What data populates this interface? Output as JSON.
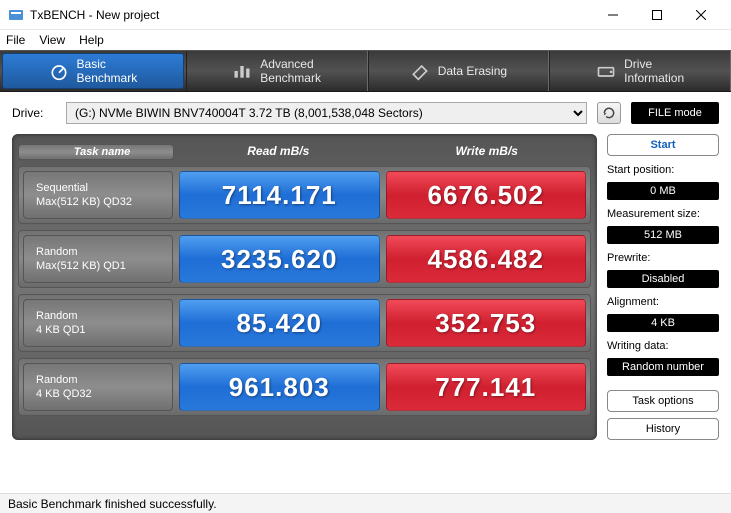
{
  "window": {
    "title": "TxBENCH - New project"
  },
  "menu": {
    "file": "File",
    "view": "View",
    "help": "Help"
  },
  "tabs": {
    "basic": "Basic\nBenchmark",
    "advanced": "Advanced\nBenchmark",
    "erase": "Data Erasing",
    "drive": "Drive\nInformation"
  },
  "drive": {
    "label": "Drive:",
    "selected": "(G:) NVMe BIWIN BNV740004T   3.72 TB (8,001,538,048 Sectors)",
    "filemode": "FILE mode"
  },
  "headers": {
    "task": "Task name",
    "read": "Read mB/s",
    "write": "Write mB/s"
  },
  "rows": [
    {
      "name1": "Sequential",
      "name2": "Max(512 KB) QD32",
      "read": "7114.171",
      "write": "6676.502"
    },
    {
      "name1": "Random",
      "name2": "Max(512 KB) QD1",
      "read": "3235.620",
      "write": "4586.482"
    },
    {
      "name1": "Random",
      "name2": "4 KB QD1",
      "read": "85.420",
      "write": "352.753"
    },
    {
      "name1": "Random",
      "name2": "4 KB QD32",
      "read": "961.803",
      "write": "777.141"
    }
  ],
  "side": {
    "start": "Start",
    "startpos_l": "Start position:",
    "startpos_v": "0 MB",
    "msize_l": "Measurement size:",
    "msize_v": "512 MB",
    "prewrite_l": "Prewrite:",
    "prewrite_v": "Disabled",
    "align_l": "Alignment:",
    "align_v": "4 KB",
    "wdata_l": "Writing data:",
    "wdata_v": "Random number",
    "taskopt": "Task options",
    "history": "History"
  },
  "status": "Basic Benchmark finished successfully.",
  "colors": {
    "read_bg": "#2a7ee0",
    "write_bg": "#d62434",
    "tab_active": "#2768b5",
    "panel": "#6f6f6f"
  }
}
